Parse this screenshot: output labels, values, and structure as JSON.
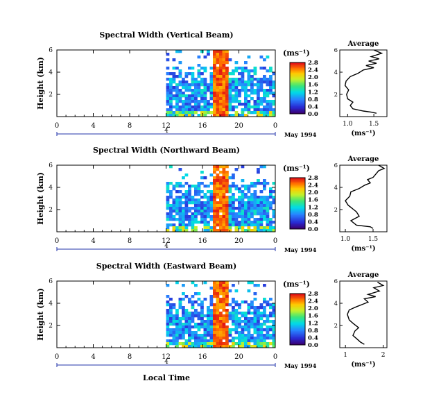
{
  "figure": {
    "shared_xlabel": "Local Time",
    "ylabel": "Height (km)",
    "date_label": "May 1994",
    "day_marker": "4",
    "colorbar_unit": "(ms⁻¹)",
    "avg_title": "Average",
    "avg_unit": "(ms⁻¹)"
  },
  "chart_data": [
    {
      "type": "heatmap",
      "title": "Spectral Width (Vertical Beam)",
      "xticks": [
        "0",
        "4",
        "8",
        "12",
        "16",
        "20",
        "0"
      ],
      "yticks": [
        "6",
        "4",
        "2"
      ],
      "colorbar_ticks": [
        "0.0",
        "0.4",
        "0.8",
        "1.2",
        "1.6",
        "2.0",
        "2.4",
        "2.8"
      ],
      "avg": {
        "xticks": [
          "1.0",
          "1.5"
        ],
        "xlim": [
          0.85,
          1.75
        ],
        "yticks": [
          "6",
          "4",
          "2"
        ],
        "profile": [
          [
            1.55,
            0.3
          ],
          [
            1.45,
            0.4
          ],
          [
            1.3,
            0.5
          ],
          [
            1.1,
            0.7
          ],
          [
            1.05,
            1.0
          ],
          [
            1.1,
            1.3
          ],
          [
            1.0,
            1.6
          ],
          [
            0.98,
            2.0
          ],
          [
            1.02,
            2.4
          ],
          [
            0.95,
            2.8
          ],
          [
            0.97,
            3.2
          ],
          [
            1.05,
            3.6
          ],
          [
            1.2,
            3.9
          ],
          [
            1.3,
            4.2
          ],
          [
            1.5,
            4.4
          ],
          [
            1.35,
            4.6
          ],
          [
            1.55,
            4.8
          ],
          [
            1.4,
            5.0
          ],
          [
            1.6,
            5.2
          ],
          [
            1.45,
            5.4
          ],
          [
            1.65,
            5.7
          ],
          [
            1.5,
            6.0
          ]
        ]
      }
    },
    {
      "type": "heatmap",
      "title": "Spectral Width (Northward Beam)",
      "xticks": [
        "0",
        "4",
        "8",
        "12",
        "16",
        "20",
        "0"
      ],
      "yticks": [
        "6",
        "4",
        "2"
      ],
      "colorbar_ticks": [
        "0.0",
        "0.4",
        "0.8",
        "1.2",
        "1.6",
        "2.0",
        "2.4",
        "2.8"
      ],
      "avg": {
        "xticks": [
          "1.0",
          "1.5"
        ],
        "xlim": [
          0.9,
          1.75
        ],
        "yticks": [
          "6",
          "4",
          "2"
        ],
        "profile": [
          [
            1.5,
            0.3
          ],
          [
            1.45,
            0.45
          ],
          [
            1.2,
            0.6
          ],
          [
            1.15,
            0.8
          ],
          [
            1.1,
            1.0
          ],
          [
            1.25,
            1.4
          ],
          [
            1.2,
            1.8
          ],
          [
            1.15,
            2.0
          ],
          [
            1.05,
            2.4
          ],
          [
            1.0,
            2.8
          ],
          [
            1.08,
            3.2
          ],
          [
            1.1,
            3.6
          ],
          [
            1.25,
            3.9
          ],
          [
            1.35,
            4.2
          ],
          [
            1.45,
            4.4
          ],
          [
            1.4,
            4.7
          ],
          [
            1.5,
            4.9
          ],
          [
            1.55,
            5.2
          ],
          [
            1.6,
            5.5
          ],
          [
            1.7,
            5.7
          ],
          [
            1.6,
            6.0
          ]
        ]
      }
    },
    {
      "type": "heatmap",
      "title": "Spectral Width (Eastward Beam)",
      "xticks": [
        "0",
        "4",
        "8",
        "12",
        "16",
        "20",
        "0"
      ],
      "yticks": [
        "6",
        "4",
        "2"
      ],
      "colorbar_ticks": [
        "0.0",
        "0.4",
        "0.8",
        "1.2",
        "1.6",
        "2.0",
        "2.4",
        "2.8"
      ],
      "avg": {
        "xticks": [
          "1",
          "2"
        ],
        "xlim": [
          0.85,
          2.1
        ],
        "yticks": [
          "6",
          "4",
          "2"
        ],
        "profile": [
          [
            1.5,
            0.3
          ],
          [
            1.4,
            0.5
          ],
          [
            1.3,
            0.8
          ],
          [
            1.2,
            1.1
          ],
          [
            1.25,
            1.5
          ],
          [
            1.35,
            1.8
          ],
          [
            1.2,
            2.2
          ],
          [
            1.1,
            2.5
          ],
          [
            1.05,
            3.0
          ],
          [
            1.1,
            3.4
          ],
          [
            1.3,
            3.7
          ],
          [
            1.45,
            3.9
          ],
          [
            1.6,
            4.1
          ],
          [
            1.5,
            4.4
          ],
          [
            1.8,
            4.6
          ],
          [
            1.6,
            4.8
          ],
          [
            1.9,
            5.1
          ],
          [
            1.75,
            5.4
          ],
          [
            2.0,
            5.6
          ],
          [
            1.85,
            5.9
          ]
        ]
      }
    }
  ]
}
